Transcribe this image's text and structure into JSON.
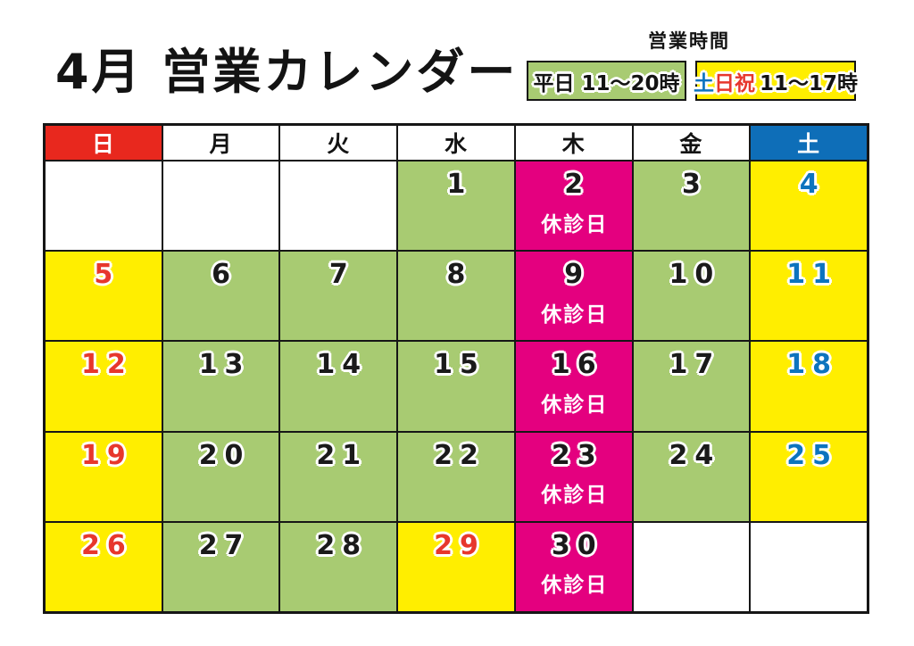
{
  "title": "4月 営業カレンダー",
  "business_hours": {
    "heading": "営業時間",
    "weekday_badge": {
      "label": "平日 11～20時",
      "bg": "#a8cb72",
      "text_color": "#131313"
    },
    "weekend_badge": {
      "bg": "#ffee00",
      "parts": [
        {
          "text": "土",
          "color": "#0d74be"
        },
        {
          "text": "日祝",
          "color": "#e7372c"
        },
        {
          "text": "11～17時",
          "color": "#131313"
        }
      ]
    }
  },
  "colors": {
    "cell_bg": {
      "open": "#a8cb72",
      "closed": "#e4007f",
      "weekend": "#ffee00",
      "empty": "#ffffff"
    },
    "num": {
      "black": "#1a1a1a",
      "red": "#e7372c",
      "blue": "#0d74be"
    },
    "border": "#161616"
  },
  "calendar": {
    "closed_label": "休診日",
    "weekday_headers": [
      {
        "label": "日",
        "bg": "#e8281e",
        "fg": "#ffffff"
      },
      {
        "label": "月",
        "bg": "#ffffff",
        "fg": "#131313"
      },
      {
        "label": "火",
        "bg": "#ffffff",
        "fg": "#131313"
      },
      {
        "label": "水",
        "bg": "#ffffff",
        "fg": "#131313"
      },
      {
        "label": "木",
        "bg": "#ffffff",
        "fg": "#131313"
      },
      {
        "label": "金",
        "bg": "#ffffff",
        "fg": "#131313"
      },
      {
        "label": "土",
        "bg": "#0e6eb8",
        "fg": "#ffffff"
      }
    ],
    "rows": [
      [
        {
          "type": "empty"
        },
        {
          "type": "empty"
        },
        {
          "type": "empty"
        },
        {
          "day": "1",
          "type": "open",
          "num": "black"
        },
        {
          "day": "2",
          "type": "closed",
          "num": "black"
        },
        {
          "day": "3",
          "type": "open",
          "num": "black"
        },
        {
          "day": "4",
          "type": "weekend",
          "num": "blue"
        }
      ],
      [
        {
          "day": "5",
          "type": "weekend",
          "num": "red"
        },
        {
          "day": "6",
          "type": "open",
          "num": "black"
        },
        {
          "day": "7",
          "type": "open",
          "num": "black"
        },
        {
          "day": "8",
          "type": "open",
          "num": "black"
        },
        {
          "day": "9",
          "type": "closed",
          "num": "black"
        },
        {
          "day": "10",
          "type": "open",
          "num": "black"
        },
        {
          "day": "11",
          "type": "weekend",
          "num": "blue"
        }
      ],
      [
        {
          "day": "12",
          "type": "weekend",
          "num": "red"
        },
        {
          "day": "13",
          "type": "open",
          "num": "black"
        },
        {
          "day": "14",
          "type": "open",
          "num": "black"
        },
        {
          "day": "15",
          "type": "open",
          "num": "black"
        },
        {
          "day": "16",
          "type": "closed",
          "num": "black"
        },
        {
          "day": "17",
          "type": "open",
          "num": "black"
        },
        {
          "day": "18",
          "type": "weekend",
          "num": "blue"
        }
      ],
      [
        {
          "day": "19",
          "type": "weekend",
          "num": "red"
        },
        {
          "day": "20",
          "type": "open",
          "num": "black"
        },
        {
          "day": "21",
          "type": "open",
          "num": "black"
        },
        {
          "day": "22",
          "type": "open",
          "num": "black"
        },
        {
          "day": "23",
          "type": "closed",
          "num": "black"
        },
        {
          "day": "24",
          "type": "open",
          "num": "black"
        },
        {
          "day": "25",
          "type": "weekend",
          "num": "blue"
        }
      ],
      [
        {
          "day": "26",
          "type": "weekend",
          "num": "red"
        },
        {
          "day": "27",
          "type": "open",
          "num": "black"
        },
        {
          "day": "28",
          "type": "open",
          "num": "black"
        },
        {
          "day": "29",
          "type": "weekend",
          "num": "red"
        },
        {
          "day": "30",
          "type": "closed",
          "num": "black"
        },
        {
          "type": "empty"
        },
        {
          "type": "empty"
        }
      ]
    ]
  }
}
